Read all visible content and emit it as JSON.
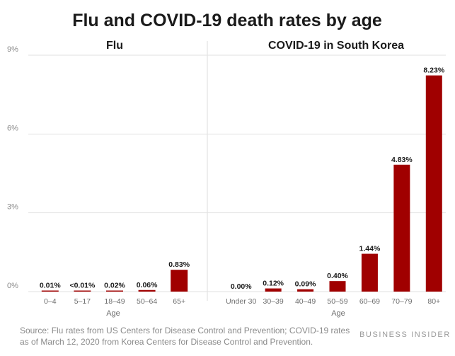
{
  "chart_data": [
    {
      "type": "bar",
      "title": "Flu",
      "xlabel": "Age",
      "ylabel": "",
      "ylim": [
        0,
        9
      ],
      "yticks": [
        "0%",
        "3%",
        "6%",
        "9%"
      ],
      "categories": [
        "0–4",
        "5–17",
        "18–49",
        "50–64",
        "65+"
      ],
      "values": [
        0.01,
        0.005,
        0.02,
        0.06,
        0.83
      ],
      "labels": [
        "0.01%",
        "<0.01%",
        "0.02%",
        "0.06%",
        "0.83%"
      ],
      "color": "#a00000"
    },
    {
      "type": "bar",
      "title": "COVID-19 in South Korea",
      "xlabel": "Age",
      "ylabel": "",
      "ylim": [
        0,
        9
      ],
      "categories": [
        "Under 30",
        "30–39",
        "40–49",
        "50–59",
        "60–69",
        "70–79",
        "80+"
      ],
      "values": [
        0.0,
        0.12,
        0.09,
        0.4,
        1.44,
        4.83,
        8.23
      ],
      "labels": [
        "0.00%",
        "0.12%",
        "0.09%",
        "0.40%",
        "1.44%",
        "4.83%",
        "8.23%"
      ],
      "color": "#a00000"
    }
  ],
  "title": "Flu and COVID-19 death rates by age",
  "source": "Source: Flu rates from US Centers for Disease Control and Prevention; COVID-19 rates as of March 12, 2020 from Korea Centers for Disease Control and Prevention.",
  "brand": "BUSINESS INSIDER"
}
